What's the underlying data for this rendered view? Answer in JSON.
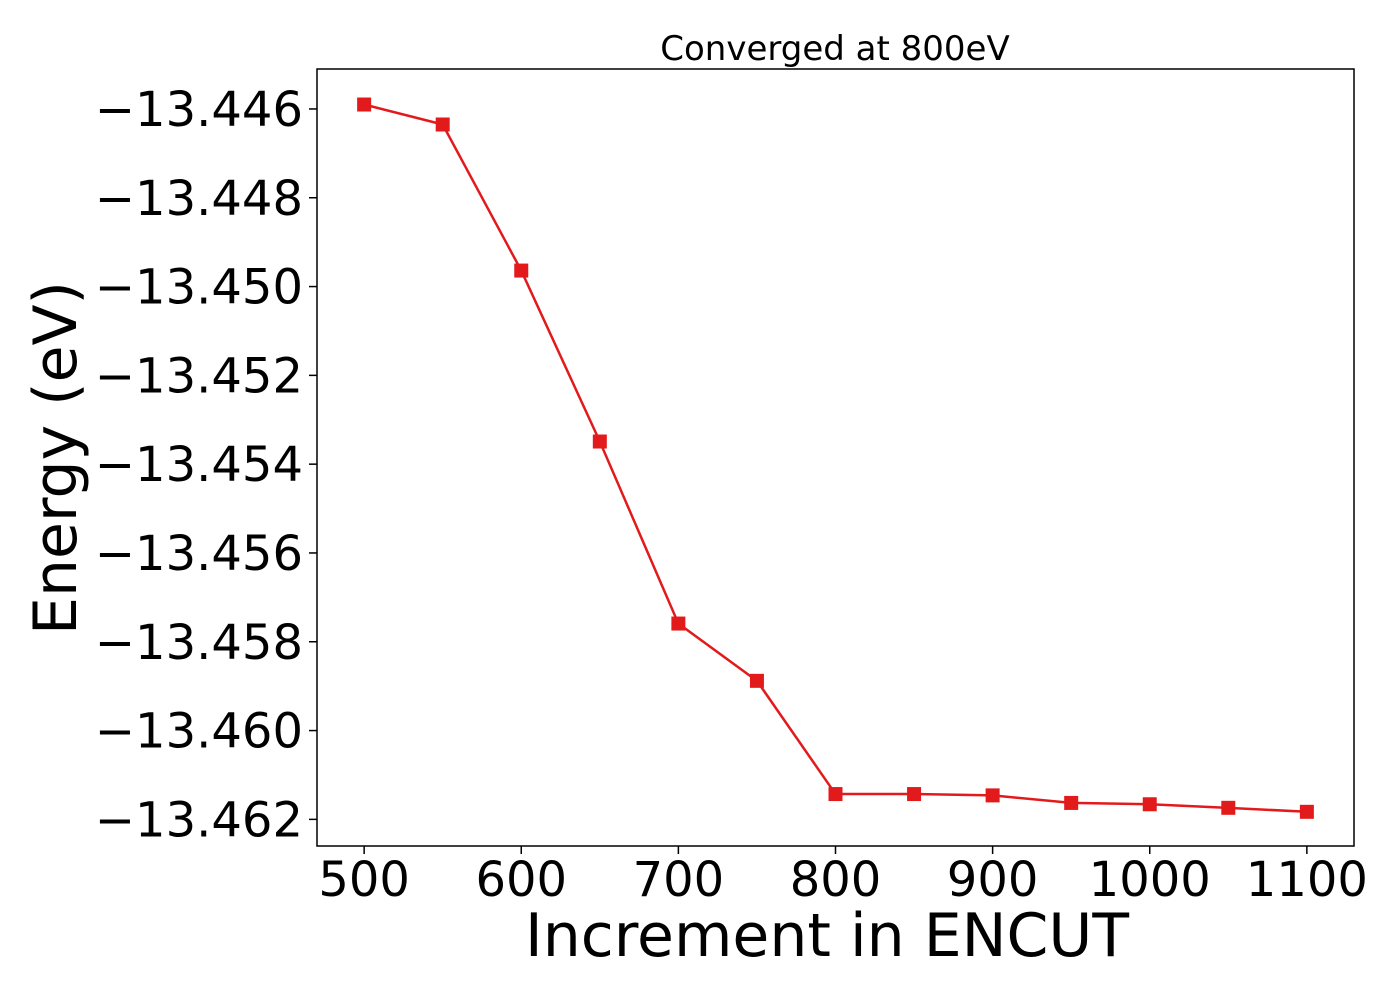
{
  "chart_data": {
    "type": "line",
    "title": "Converged at 800eV",
    "xlabel": "Increment in ENCUT",
    "ylabel": "Energy (eV)",
    "xlim": [
      470,
      1130
    ],
    "ylim": [
      -13.4626,
      -13.4451
    ],
    "xticks": [
      500,
      600,
      700,
      800,
      900,
      1000,
      1100
    ],
    "yticks": [
      -13.446,
      -13.448,
      -13.45,
      -13.452,
      -13.454,
      -13.456,
      -13.458,
      -13.46,
      -13.462
    ],
    "ytick_labels": [
      "−13.446",
      "−13.448",
      "−13.450",
      "−13.452",
      "−13.454",
      "−13.456",
      "−13.458",
      "−13.460",
      "−13.462"
    ],
    "grid": false,
    "series": [
      {
        "marker": "square",
        "color": "#e31a1c",
        "x": [
          500,
          550,
          600,
          650,
          700,
          750,
          800,
          850,
          900,
          950,
          1000,
          1050,
          1100
        ],
        "y": [
          -13.4459,
          -13.44635,
          -13.44964,
          -13.45349,
          -13.45759,
          -13.45888,
          -13.46143,
          -13.46143,
          -13.46146,
          -13.46163,
          -13.46166,
          -13.46174,
          -13.46183
        ]
      }
    ]
  }
}
